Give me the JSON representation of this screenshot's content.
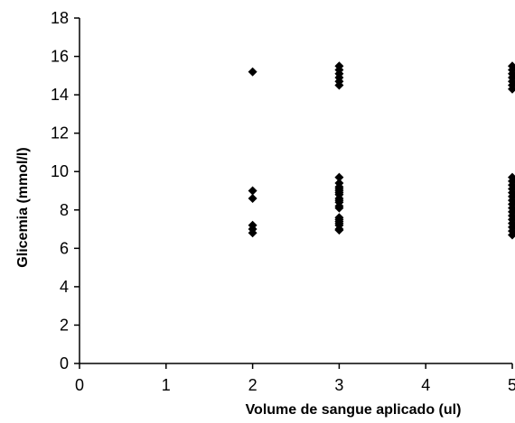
{
  "chart_data": {
    "type": "scatter",
    "title": "",
    "xlabel": "Volume de sangue aplicado (ul)",
    "ylabel": "Glicemia (mmol/l)",
    "xlim": [
      0,
      5
    ],
    "ylim": [
      0,
      18
    ],
    "xticks": [
      "0",
      "1",
      "2",
      "3",
      "4",
      "5"
    ],
    "yticks": [
      "0",
      "2",
      "4",
      "6",
      "8",
      "10",
      "12",
      "14",
      "16",
      "18"
    ],
    "grid": false,
    "legend": "none",
    "marker": "diamond",
    "marker_color": "#000000",
    "series": [
      {
        "x": [
          2,
          2,
          2,
          2,
          2,
          2,
          3,
          3,
          3,
          3,
          3,
          3,
          3,
          3,
          3,
          3,
          3,
          3,
          3,
          3,
          3,
          3,
          3,
          3,
          3,
          3,
          3,
          3,
          3,
          3,
          3,
          5,
          5,
          5,
          5,
          5,
          5,
          5,
          5,
          5,
          5,
          5,
          5,
          5,
          5,
          5,
          5,
          5,
          5,
          5,
          5,
          5,
          5,
          5
        ],
        "y": [
          15.2,
          9.0,
          8.6,
          7.2,
          7.0,
          6.8,
          15.5,
          15.3,
          15.1,
          14.9,
          14.7,
          14.5,
          9.7,
          9.4,
          9.2,
          9.0,
          8.8,
          8.6,
          8.4,
          8.2,
          7.6,
          7.4,
          7.2,
          7.0,
          7.3,
          8.9,
          9.1,
          8.5,
          8.1,
          7.5,
          6.95,
          15.5,
          15.3,
          15.1,
          14.9,
          14.7,
          14.5,
          14.3,
          9.7,
          9.5,
          9.3,
          9.1,
          8.9,
          8.7,
          8.5,
          8.3,
          8.1,
          7.9,
          7.7,
          7.5,
          7.3,
          7.1,
          6.9,
          6.7
        ]
      }
    ]
  }
}
